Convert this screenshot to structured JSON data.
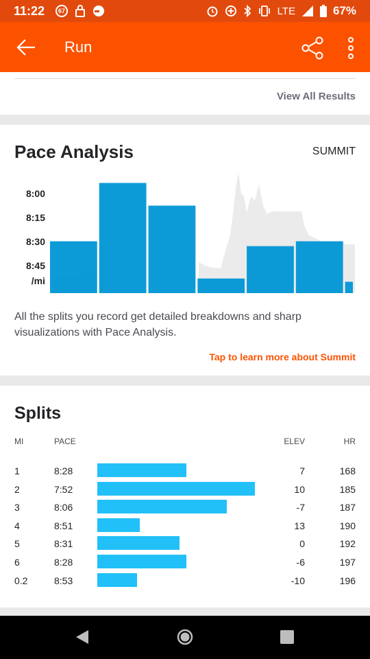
{
  "status_bar": {
    "time": "11:22",
    "notification_badge": "67",
    "network": "LTE",
    "battery": "67%"
  },
  "app_bar": {
    "title": "Run"
  },
  "results": {
    "view_all_label": "View All Results"
  },
  "pace_analysis": {
    "title": "Pace Analysis",
    "badge": "SUMMIT",
    "y_labels": [
      "8:00",
      "8:15",
      "8:30",
      "8:45",
      "/mi"
    ],
    "description": "All the splits you record get detailed breakdowns and sharp visualizations with Pace Analysis.",
    "link": "Tap to learn more about Summit"
  },
  "chart_data": {
    "type": "bar",
    "categories": [
      "1",
      "2",
      "3",
      "4",
      "5",
      "6",
      "0.2"
    ],
    "values_seconds_per_mi": [
      508,
      472,
      486,
      531,
      511,
      508,
      533
    ],
    "y_ticks": [
      "8:00",
      "8:15",
      "8:30",
      "8:45"
    ],
    "ylabel": "/mi",
    "ylim_seconds": [
      540,
      465
    ],
    "colors": {
      "bar": "#0096d6",
      "bar_dark": "#0081b8",
      "background_trace": "#ebebeb"
    }
  },
  "splits": {
    "title": "Splits",
    "headers": {
      "mi": "MI",
      "pace": "PACE",
      "elev": "ELEV",
      "hr": "HR"
    },
    "rows": [
      {
        "mi": "1",
        "pace": "8:28",
        "elev": "7",
        "hr": "168",
        "bar_fraction": 0.565
      },
      {
        "mi": "2",
        "pace": "7:52",
        "elev": "10",
        "hr": "185",
        "bar_fraction": 1.0
      },
      {
        "mi": "3",
        "pace": "8:06",
        "elev": "-7",
        "hr": "187",
        "bar_fraction": 0.822
      },
      {
        "mi": "4",
        "pace": "8:51",
        "elev": "13",
        "hr": "190",
        "bar_fraction": 0.27
      },
      {
        "mi": "5",
        "pace": "8:31",
        "elev": "0",
        "hr": "192",
        "bar_fraction": 0.522
      },
      {
        "mi": "6",
        "pace": "8:28",
        "elev": "-6",
        "hr": "197",
        "bar_fraction": 0.565
      },
      {
        "mi": "0.2",
        "pace": "8:53",
        "elev": "-10",
        "hr": "196",
        "bar_fraction": 0.252
      }
    ],
    "bar_color": "#22c0f9"
  }
}
